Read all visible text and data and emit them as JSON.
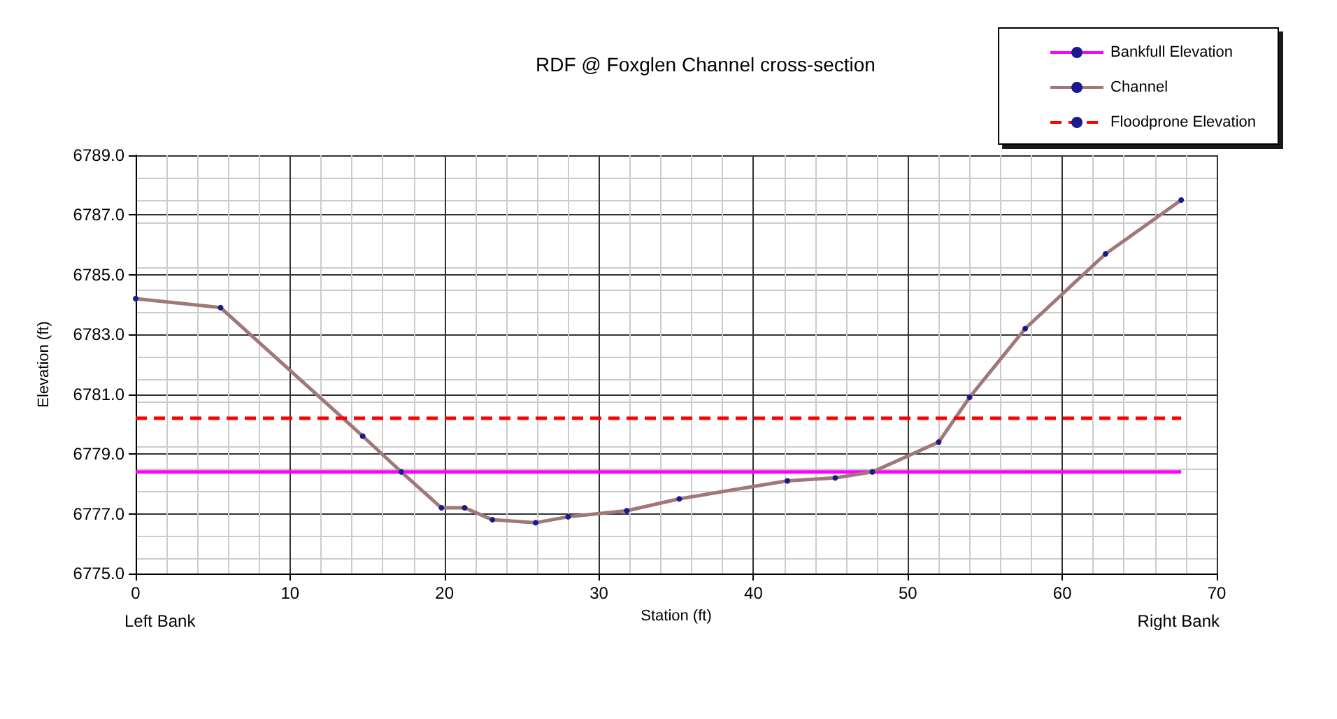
{
  "chart_data": {
    "type": "line",
    "title": "RDF @ Foxglen Channel cross-section",
    "xlabel": "Station (ft)",
    "ylabel": "Elevation (ft)",
    "annotations": [
      "Left Bank",
      "Right Bank"
    ],
    "series": [
      {
        "name": "Bankfull Elevation",
        "color": "#ff00ff",
        "line_style": "solid",
        "marker": "none",
        "x": [
          0,
          67.7
        ],
        "values": [
          6778.4,
          6778.4
        ]
      },
      {
        "name": "Channel",
        "color": "#a07878",
        "line_style": "solid",
        "marker": "circle",
        "x": [
          0,
          5.5,
          14.7,
          17.2,
          19.8,
          21.3,
          23.1,
          25.9,
          28.0,
          31.8,
          35.2,
          42.2,
          45.3,
          47.7,
          52.0,
          54.0,
          57.6,
          62.8,
          67.7
        ],
        "values": [
          6784.2,
          6783.9,
          6779.6,
          6778.4,
          6777.2,
          6777.2,
          6776.8,
          6776.7,
          6776.9,
          6777.1,
          6777.5,
          6778.1,
          6778.2,
          6778.4,
          6779.4,
          6780.9,
          6783.2,
          6785.7,
          6787.5
        ]
      },
      {
        "name": "Floodprone Elevation",
        "color": "#ff0000",
        "line_style": "dashed",
        "marker": "none",
        "x": [
          0,
          67.7
        ],
        "values": [
          6780.2,
          6780.2
        ]
      }
    ],
    "xlim": [
      0,
      70
    ],
    "xticks": [
      0,
      10,
      20,
      30,
      40,
      50,
      60,
      70
    ],
    "ylim": [
      6775,
      6789
    ],
    "yticks": [
      {
        "value": 6775,
        "label": "6775.0"
      },
      {
        "value": 6777,
        "label": "6777.0"
      },
      {
        "value": 6779,
        "label": "6779.0"
      },
      {
        "value": 6781,
        "label": "6781.0"
      },
      {
        "value": 6783,
        "label": "6783.0"
      },
      {
        "value": 6785,
        "label": "6785.0"
      },
      {
        "value": 6787,
        "label": "6787.0"
      },
      {
        "value": 6789,
        "label": "6789.0"
      }
    ],
    "grid": true,
    "legend": "top right"
  }
}
